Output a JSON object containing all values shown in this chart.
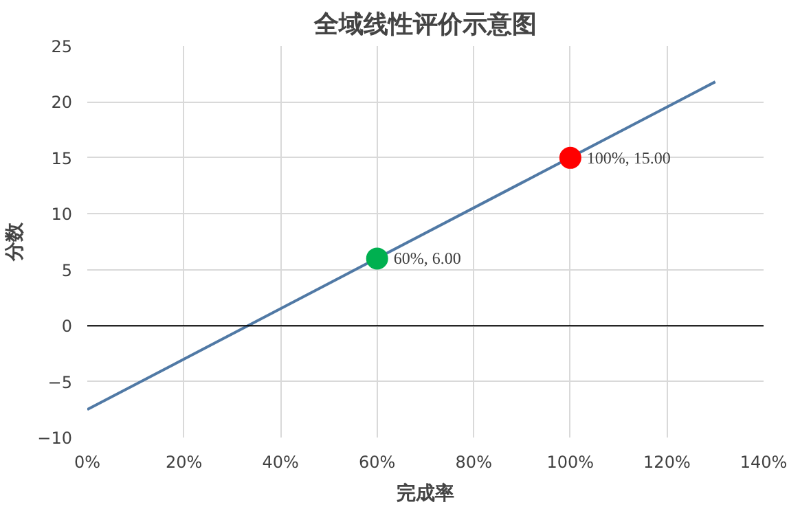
{
  "chart_data": {
    "type": "line",
    "title": "全域线性评价示意图",
    "xlabel": "完成率",
    "ylabel": "分数",
    "xlim": [
      0,
      1.4
    ],
    "ylim": [
      -10,
      25
    ],
    "xticks": [
      {
        "value": 0,
        "label": "0%"
      },
      {
        "value": 0.2,
        "label": "20%"
      },
      {
        "value": 0.4,
        "label": "40%"
      },
      {
        "value": 0.6,
        "label": "60%"
      },
      {
        "value": 0.8,
        "label": "80%"
      },
      {
        "value": 1.0,
        "label": "100%"
      },
      {
        "value": 1.2,
        "label": "120%"
      },
      {
        "value": 1.4,
        "label": "140%"
      }
    ],
    "yticks": [
      -10,
      -5,
      0,
      5,
      10,
      15,
      20,
      25
    ],
    "grid": true,
    "ref_lines": [
      {
        "axis": "y",
        "value": 0,
        "color": "#000000"
      }
    ],
    "series": [
      {
        "color": "#5079a5",
        "x": [
          0,
          1.3
        ],
        "values": [
          -7.5,
          21.8
        ],
        "marker": "none"
      },
      {
        "type": "scatter",
        "colors": [
          "#00b050",
          "#ff0000"
        ],
        "x": [
          0.6,
          1.0
        ],
        "values": [
          6,
          15
        ],
        "marker": "circle",
        "value_labels": [
          "60%, 6.00",
          "100%, 15.00"
        ]
      }
    ]
  }
}
